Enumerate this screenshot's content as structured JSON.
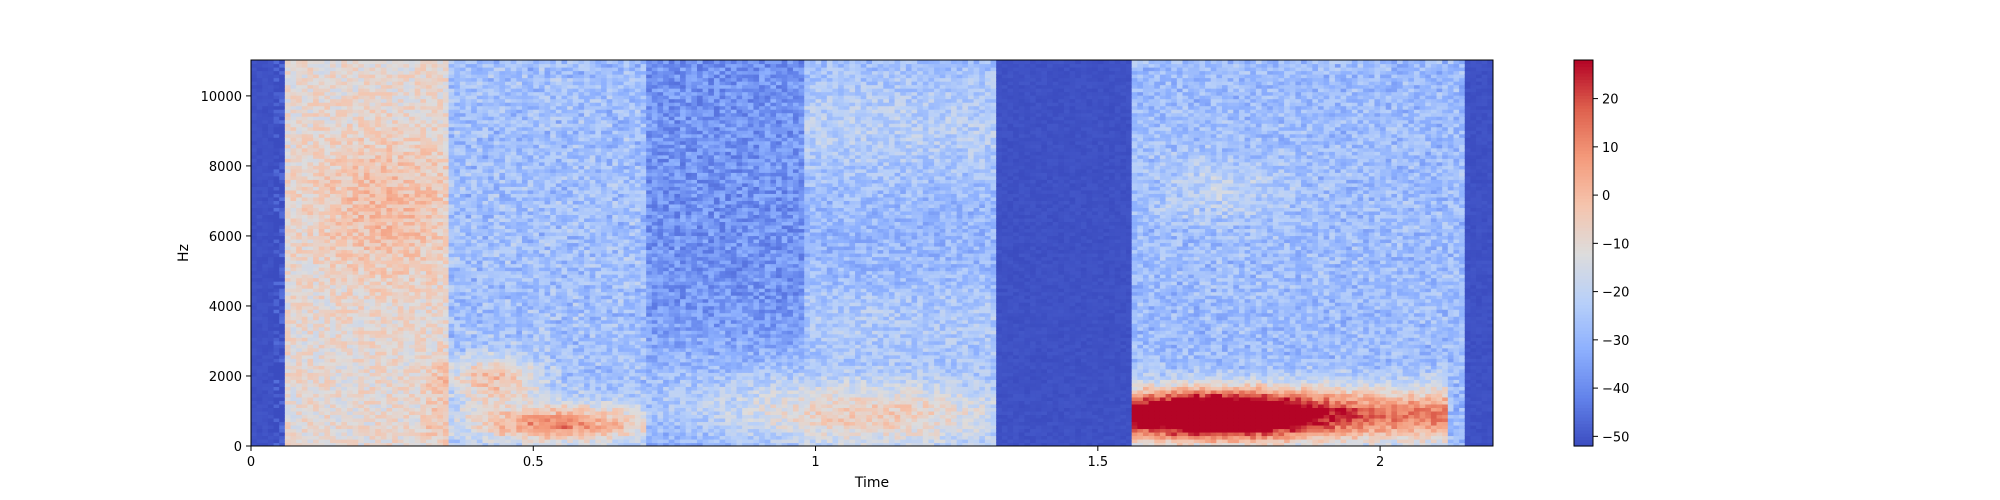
{
  "chart_data": {
    "type": "heatmap",
    "title": "",
    "xlabel": "Time",
    "ylabel": "Hz",
    "xlim": [
      0,
      2.2
    ],
    "ylim": [
      0,
      11025
    ],
    "x_ticks": [
      0,
      0.5,
      1,
      1.5,
      2
    ],
    "x_tick_labels": [
      "0",
      "0.5",
      "1",
      "1.5",
      "2"
    ],
    "y_ticks": [
      0,
      2000,
      4000,
      6000,
      8000,
      10000
    ],
    "y_tick_labels": [
      "0",
      "2000",
      "4000",
      "6000",
      "8000",
      "10000"
    ],
    "colorbar": {
      "colormap": "coolwarm",
      "range": [
        -52,
        28
      ],
      "ticks": [
        -50,
        -40,
        -30,
        -20,
        -10,
        0,
        10,
        20
      ],
      "tick_labels": [
        "−50",
        "−40",
        "−30",
        "−20",
        "−10",
        "0",
        "10",
        "20"
      ],
      "low_color": "#3b4cc0",
      "high_color": "#b40426"
    },
    "grid": false
  }
}
